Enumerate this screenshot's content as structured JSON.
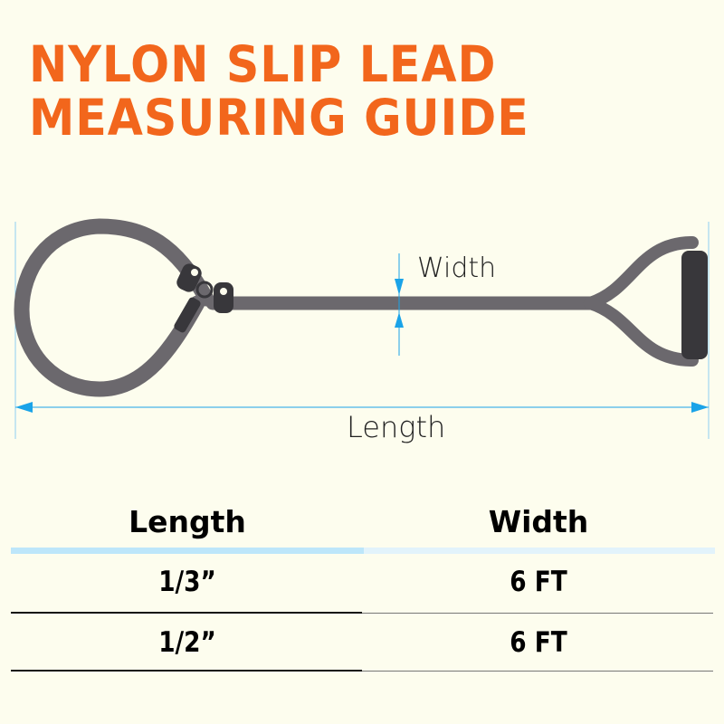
{
  "title": {
    "line1": "NYLON SLIP LEAD",
    "line2": "MEASURING GUIDE"
  },
  "diagram": {
    "width_label": "Width",
    "length_label": "Length"
  },
  "table": {
    "headers": [
      "Length",
      "Width"
    ],
    "rows": [
      [
        "1/3”",
        "6 FT"
      ],
      [
        "1/2”",
        "6 FT"
      ]
    ]
  },
  "colors": {
    "title": "#f2661c",
    "measure": "#1aa3e8",
    "lead": "#6b686d",
    "handle": "#38373b",
    "background": "#fdfdee"
  }
}
